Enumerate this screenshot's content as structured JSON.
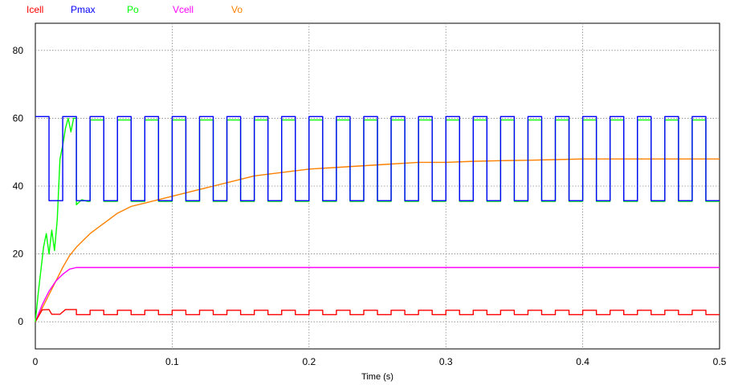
{
  "chart_data": {
    "type": "line",
    "title": "",
    "xlabel": "Time (s)",
    "ylabel": "",
    "xlim": [
      0,
      0.5
    ],
    "ylim": [
      -8,
      88
    ],
    "xticks": [
      0,
      0.1,
      0.2,
      0.3,
      0.4,
      0.5
    ],
    "xtick_labels": [
      "0",
      "0.1",
      "0.2",
      "0.3",
      "0.4",
      "0.5"
    ],
    "yticks": [
      0,
      20,
      40,
      60,
      80
    ],
    "ytick_labels": [
      "0",
      "20",
      "40",
      "60",
      "80"
    ],
    "grid": true,
    "legend_position": "top-left",
    "period": 0.02,
    "series": [
      {
        "name": "Icell",
        "color": "#ff0000",
        "description_levels": [
          2,
          3.5
        ],
        "x": [
          0,
          0.005,
          0.01,
          0.012,
          0.018,
          0.022,
          0.026,
          0.03,
          0.03,
          0.04,
          0.04,
          0.05,
          0.05,
          0.06,
          0.06,
          0.07,
          0.07,
          0.08,
          0.08,
          0.09,
          0.09,
          0.1,
          0.1,
          0.11,
          0.11,
          0.12,
          0.12,
          0.13,
          0.13,
          0.14,
          0.14,
          0.15,
          0.15,
          0.16,
          0.16,
          0.17,
          0.17,
          0.18,
          0.18,
          0.19,
          0.19,
          0.2,
          0.2,
          0.21,
          0.21,
          0.22,
          0.22,
          0.23,
          0.23,
          0.24,
          0.24,
          0.25,
          0.25,
          0.26,
          0.26,
          0.27,
          0.27,
          0.28,
          0.28,
          0.29,
          0.29,
          0.3,
          0.3,
          0.31,
          0.31,
          0.32,
          0.32,
          0.33,
          0.33,
          0.34,
          0.34,
          0.35,
          0.35,
          0.36,
          0.36,
          0.37,
          0.37,
          0.38,
          0.38,
          0.39,
          0.39,
          0.4,
          0.4,
          0.41,
          0.41,
          0.42,
          0.42,
          0.43,
          0.43,
          0.44,
          0.44,
          0.45,
          0.45,
          0.46,
          0.46,
          0.47,
          0.47,
          0.48,
          0.48,
          0.49,
          0.49,
          0.5
        ],
        "y": [
          0,
          3.5,
          3.6,
          2.2,
          2.2,
          3.6,
          3.6,
          3.6,
          2.1,
          2.1,
          3.4,
          3.4,
          2.1,
          2.1,
          3.4,
          3.4,
          2.1,
          2.1,
          3.4,
          3.4,
          2.1,
          2.1,
          3.4,
          3.4,
          2.1,
          2.1,
          3.4,
          3.4,
          2.1,
          2.1,
          3.4,
          3.4,
          2.1,
          2.1,
          3.4,
          3.4,
          2.1,
          2.1,
          3.4,
          3.4,
          2.1,
          2.1,
          3.4,
          3.4,
          2.1,
          2.1,
          3.4,
          3.4,
          2.1,
          2.1,
          3.4,
          3.4,
          2.1,
          2.1,
          3.4,
          3.4,
          2.1,
          2.1,
          3.4,
          3.4,
          2.1,
          2.1,
          3.4,
          3.4,
          2.1,
          2.1,
          3.4,
          3.4,
          2.1,
          2.1,
          3.4,
          3.4,
          2.1,
          2.1,
          3.4,
          3.4,
          2.1,
          2.1,
          3.4,
          3.4,
          2.1,
          2.1,
          3.4,
          3.4,
          2.1,
          2.1,
          3.4,
          3.4,
          2.1,
          2.1,
          3.4,
          3.4,
          2.1,
          2.1,
          3.4,
          3.4,
          2.1,
          2.1,
          3.4,
          3.4,
          2.1,
          2.1
        ]
      },
      {
        "name": "Pmax",
        "color": "#0000ff",
        "x": [
          0,
          0.01,
          0.01,
          0.02,
          0.02,
          0.03,
          0.03,
          0.04,
          0.04,
          0.05,
          0.05,
          0.06,
          0.06,
          0.07,
          0.07,
          0.08,
          0.08,
          0.09,
          0.09,
          0.1,
          0.1,
          0.11,
          0.11,
          0.12,
          0.12,
          0.13,
          0.13,
          0.14,
          0.14,
          0.15,
          0.15,
          0.16,
          0.16,
          0.17,
          0.17,
          0.18,
          0.18,
          0.19,
          0.19,
          0.2,
          0.2,
          0.21,
          0.21,
          0.22,
          0.22,
          0.23,
          0.23,
          0.24,
          0.24,
          0.25,
          0.25,
          0.26,
          0.26,
          0.27,
          0.27,
          0.28,
          0.28,
          0.29,
          0.29,
          0.3,
          0.3,
          0.31,
          0.31,
          0.32,
          0.32,
          0.33,
          0.33,
          0.34,
          0.34,
          0.35,
          0.35,
          0.36,
          0.36,
          0.37,
          0.37,
          0.38,
          0.38,
          0.39,
          0.39,
          0.4,
          0.4,
          0.41,
          0.41,
          0.42,
          0.42,
          0.43,
          0.43,
          0.44,
          0.44,
          0.45,
          0.45,
          0.46,
          0.46,
          0.47,
          0.47,
          0.48,
          0.48,
          0.49,
          0.49,
          0.5
        ],
        "y": [
          60.5,
          60.5,
          35.7,
          35.7,
          60.5,
          60.5,
          35.7,
          35.7,
          60.5,
          60.5,
          35.7,
          35.7,
          60.5,
          60.5,
          35.7,
          35.7,
          60.5,
          60.5,
          35.7,
          35.7,
          60.5,
          60.5,
          35.7,
          35.7,
          60.5,
          60.5,
          35.7,
          35.7,
          60.5,
          60.5,
          35.7,
          35.7,
          60.5,
          60.5,
          35.7,
          35.7,
          60.5,
          60.5,
          35.7,
          35.7,
          60.5,
          60.5,
          35.7,
          35.7,
          60.5,
          60.5,
          35.7,
          35.7,
          60.5,
          60.5,
          35.7,
          35.7,
          60.5,
          60.5,
          35.7,
          35.7,
          60.5,
          60.5,
          35.7,
          35.7,
          60.5,
          60.5,
          35.7,
          35.7,
          60.5,
          60.5,
          35.7,
          35.7,
          60.5,
          60.5,
          35.7,
          35.7,
          60.5,
          60.5,
          35.7,
          35.7,
          60.5,
          60.5,
          35.7,
          35.7,
          60.5,
          60.5,
          35.7,
          35.7,
          60.5,
          60.5,
          35.7,
          35.7,
          60.5,
          60.5,
          35.7,
          35.7,
          60.5,
          60.5,
          35.7,
          35.7,
          60.5,
          60.5,
          35.7,
          35.7
        ]
      },
      {
        "name": "Po",
        "color": "#00ff00",
        "x": [
          0,
          0.002,
          0.004,
          0.006,
          0.008,
          0.01,
          0.012,
          0.014,
          0.016,
          0.018,
          0.02,
          0.022,
          0.024,
          0.026,
          0.028,
          0.03,
          0.03,
          0.034,
          0.038,
          0.04,
          0.04,
          0.05,
          0.05,
          0.06,
          0.06,
          0.07,
          0.07,
          0.08,
          0.08,
          0.09,
          0.09,
          0.1,
          0.1,
          0.11,
          0.11,
          0.12,
          0.12,
          0.13,
          0.13,
          0.14,
          0.14,
          0.15,
          0.15,
          0.16,
          0.16,
          0.17,
          0.17,
          0.18,
          0.18,
          0.19,
          0.19,
          0.2,
          0.2,
          0.21,
          0.21,
          0.22,
          0.22,
          0.23,
          0.23,
          0.24,
          0.24,
          0.25,
          0.25,
          0.26,
          0.26,
          0.27,
          0.27,
          0.28,
          0.28,
          0.29,
          0.29,
          0.3,
          0.3,
          0.31,
          0.31,
          0.32,
          0.32,
          0.33,
          0.33,
          0.34,
          0.34,
          0.35,
          0.35,
          0.36,
          0.36,
          0.37,
          0.37,
          0.38,
          0.38,
          0.39,
          0.39,
          0.4,
          0.4,
          0.41,
          0.41,
          0.42,
          0.42,
          0.43,
          0.43,
          0.44,
          0.44,
          0.45,
          0.45,
          0.46,
          0.46,
          0.47,
          0.47,
          0.48,
          0.48,
          0.49,
          0.49,
          0.5
        ],
        "y": [
          0,
          8,
          15,
          22,
          26,
          20,
          27,
          21,
          30,
          48,
          52,
          57,
          60,
          56,
          60,
          60,
          34.5,
          36,
          35.5,
          35.5,
          59.5,
          59.5,
          35.5,
          35.5,
          59.5,
          59.5,
          35.5,
          35.5,
          59.5,
          59.5,
          35.5,
          35.5,
          59.5,
          59.5,
          35.5,
          35.5,
          59.5,
          59.5,
          35.5,
          35.5,
          59.5,
          59.5,
          35.5,
          35.5,
          59.5,
          59.5,
          35.5,
          35.5,
          59.5,
          59.5,
          35.5,
          35.5,
          59.5,
          59.5,
          35.5,
          35.5,
          59.5,
          59.5,
          35.5,
          35.5,
          59.5,
          59.5,
          35.5,
          35.5,
          59.5,
          59.5,
          35.5,
          35.5,
          59.5,
          59.5,
          35.5,
          35.5,
          59.5,
          59.5,
          35.5,
          35.5,
          59.5,
          59.5,
          35.5,
          35.5,
          59.5,
          59.5,
          35.5,
          35.5,
          59.5,
          59.5,
          35.5,
          35.5,
          59.5,
          59.5,
          35.5,
          35.5,
          59.5,
          59.5,
          35.5,
          35.5,
          59.5,
          59.5,
          35.5,
          35.5,
          59.5,
          59.5,
          35.5,
          35.5,
          59.5,
          59.5,
          35.5,
          35.5,
          59.5,
          59.5,
          35.5,
          35.5
        ]
      },
      {
        "name": "Vcell",
        "color": "#ff00ff",
        "x": [
          0,
          0.005,
          0.01,
          0.015,
          0.02,
          0.025,
          0.03,
          0.04,
          0.05,
          0.1,
          0.15,
          0.2,
          0.25,
          0.3,
          0.35,
          0.4,
          0.45,
          0.5
        ],
        "y": [
          0,
          5,
          9,
          12,
          14,
          15.5,
          16,
          16,
          16,
          16,
          16,
          16,
          16,
          16,
          16,
          16,
          16,
          16
        ]
      },
      {
        "name": "Vo",
        "color": "#ff8000",
        "x": [
          0,
          0.005,
          0.01,
          0.015,
          0.02,
          0.025,
          0.03,
          0.035,
          0.04,
          0.045,
          0.05,
          0.055,
          0.06,
          0.065,
          0.07,
          0.08,
          0.09,
          0.1,
          0.11,
          0.12,
          0.13,
          0.14,
          0.15,
          0.16,
          0.17,
          0.18,
          0.19,
          0.2,
          0.22,
          0.24,
          0.26,
          0.28,
          0.3,
          0.32,
          0.34,
          0.36,
          0.38,
          0.4,
          0.42,
          0.44,
          0.46,
          0.48,
          0.5
        ],
        "y": [
          0,
          4,
          8,
          12,
          16,
          19.5,
          22,
          24,
          26,
          27.5,
          29,
          30.5,
          32,
          33,
          34,
          35,
          36,
          37,
          38,
          39,
          40,
          41,
          42,
          43,
          43.5,
          44,
          44.5,
          45,
          45.5,
          46,
          46.5,
          47,
          47,
          47.3,
          47.5,
          47.6,
          47.8,
          48,
          48,
          48,
          48,
          48,
          48
        ]
      }
    ]
  }
}
